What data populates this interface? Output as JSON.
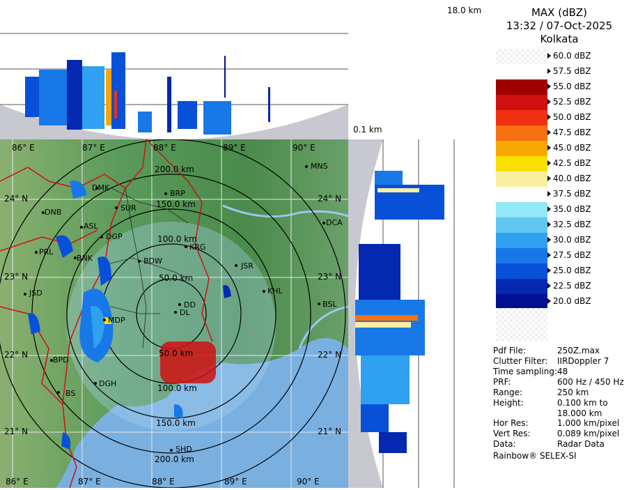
{
  "top_section": {
    "height_max_label": "18.0 km",
    "height_min_label": "0.1 km"
  },
  "legend": {
    "title": "MAX (dBZ)",
    "datetime": "13:32 / 07-Oct-2025",
    "station": "Kolkata",
    "scale": [
      {
        "label": "60.0 dBZ",
        "color": "checker"
      },
      {
        "label": "57.5 dBZ",
        "color": "#ffffff"
      },
      {
        "label": "55.0 dBZ",
        "color": "#a00000"
      },
      {
        "label": "52.5 dBZ",
        "color": "#d01010"
      },
      {
        "label": "50.0 dBZ",
        "color": "#f03010"
      },
      {
        "label": "47.5 dBZ",
        "color": "#f87010"
      },
      {
        "label": "45.0 dBZ",
        "color": "#f8a800"
      },
      {
        "label": "42.5 dBZ",
        "color": "#f8e000"
      },
      {
        "label": "40.0 dBZ",
        "color": "#f8f0a0"
      },
      {
        "label": "37.5 dBZ",
        "color": "#ffffff"
      },
      {
        "label": "35.0 dBZ",
        "color": "#90e8f8"
      },
      {
        "label": "32.5 dBZ",
        "color": "#60c8f0"
      },
      {
        "label": "30.0 dBZ",
        "color": "#30a0f0"
      },
      {
        "label": "27.5 dBZ",
        "color": "#1878e8"
      },
      {
        "label": "25.0 dBZ",
        "color": "#0850d8"
      },
      {
        "label": "22.5 dBZ",
        "color": "#0428b0"
      },
      {
        "label": "20.0 dBZ",
        "color": "#001090"
      }
    ]
  },
  "info": [
    {
      "key": "Pdf File:",
      "value": "250Z.max"
    },
    {
      "key": "Clutter Filter:",
      "value": "IIRDoppler 7"
    },
    {
      "key": "Time sampling:",
      "value": "48"
    },
    {
      "key": "PRF:",
      "value": "600 Hz / 450 Hz"
    },
    {
      "key": "Range:",
      "value": "250 km"
    },
    {
      "key": "Height:",
      "value": "0.100 km to 18.000 km"
    },
    {
      "key": "Hor Res:",
      "value": "1.000 km/pixel"
    },
    {
      "key": "Vert Res:",
      "value": "0.089 km/pixel"
    },
    {
      "key": "Data:",
      "value": "Radar Data"
    }
  ],
  "footer": "Rainbow® SELEX-SI",
  "map": {
    "longitudes_top": [
      "86° E",
      "87° E",
      "88° E",
      "89° E",
      "90° E"
    ],
    "longitudes_bottom": [
      "86° E",
      "87° E",
      "88° E",
      "89° E",
      "90° E"
    ],
    "latitudes_left": [
      "24° N",
      "23° N",
      "22° N",
      "21° N"
    ],
    "latitudes_right": [
      "24° N",
      "23° N",
      "22° N",
      "21° N"
    ],
    "range_rings": [
      "50.0 km",
      "100.0 km",
      "150.0 km",
      "200.0 km",
      "50.0 km",
      "100.0 km",
      "150.0 km",
      "200.0 km"
    ],
    "cities": [
      "MNS",
      "DMK",
      "BRP",
      "DNB",
      "SUR",
      "ASL",
      "DGP",
      "DCA",
      "PRL",
      "KRG",
      "BNK",
      "BDW",
      "JSR",
      "JSD",
      "KHL",
      "DD",
      "BSL",
      "MDP",
      "DL",
      "BPD",
      "DGH",
      "BS",
      "SHD"
    ]
  },
  "colors": {
    "land": "#5a9a5a",
    "water": "#7ab0e0",
    "boundary": "#d01010",
    "panel_bg": "#c8c8d0"
  }
}
